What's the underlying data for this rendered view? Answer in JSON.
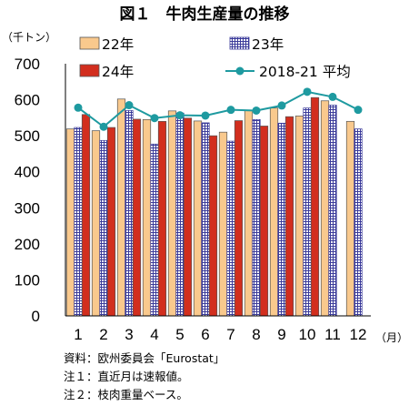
{
  "chart_data": {
    "type": "bar",
    "title": "図１　牛肉生産量の推移",
    "ylabel": "（千トン）",
    "xlabel": "（月）",
    "ylim": [
      0,
      700
    ],
    "yticks": [
      "0",
      "100",
      "200",
      "300",
      "400",
      "500",
      "600",
      "700"
    ],
    "categories": [
      "1",
      "2",
      "3",
      "4",
      "5",
      "6",
      "7",
      "8",
      "9",
      "10",
      "11",
      "12"
    ],
    "series": [
      {
        "name": "22年",
        "kind": "bar",
        "color": "#F9C98D",
        "values": [
          519,
          514,
          602,
          545,
          569,
          541,
          510,
          571,
          577,
          555,
          597,
          540
        ]
      },
      {
        "name": "23年",
        "kind": "bar",
        "pattern": "grid",
        "color": "#3B3B9A",
        "values": [
          523,
          487,
          570,
          477,
          563,
          536,
          485,
          545,
          535,
          577,
          585,
          519
        ]
      },
      {
        "name": "24年",
        "kind": "bar",
        "color": "#D22E1E",
        "values": [
          559,
          523,
          546,
          540,
          549,
          500,
          542,
          527,
          553,
          606,
          null,
          null
        ]
      },
      {
        "name": "2018-21 平均",
        "kind": "line",
        "color": "#1E9AA0",
        "values": [
          578,
          525,
          585,
          549,
          557,
          556,
          572,
          570,
          584,
          622,
          608,
          572
        ]
      }
    ],
    "legend": {
      "position": "top",
      "items": [
        "22年",
        "23年",
        "24年",
        "2018-21 平均"
      ]
    },
    "grid": false
  },
  "notes": [
    "資料：欧州委員会「Eurostat」",
    "注１：直近月は速報値。",
    "注２：枝肉重量ベース。"
  ]
}
